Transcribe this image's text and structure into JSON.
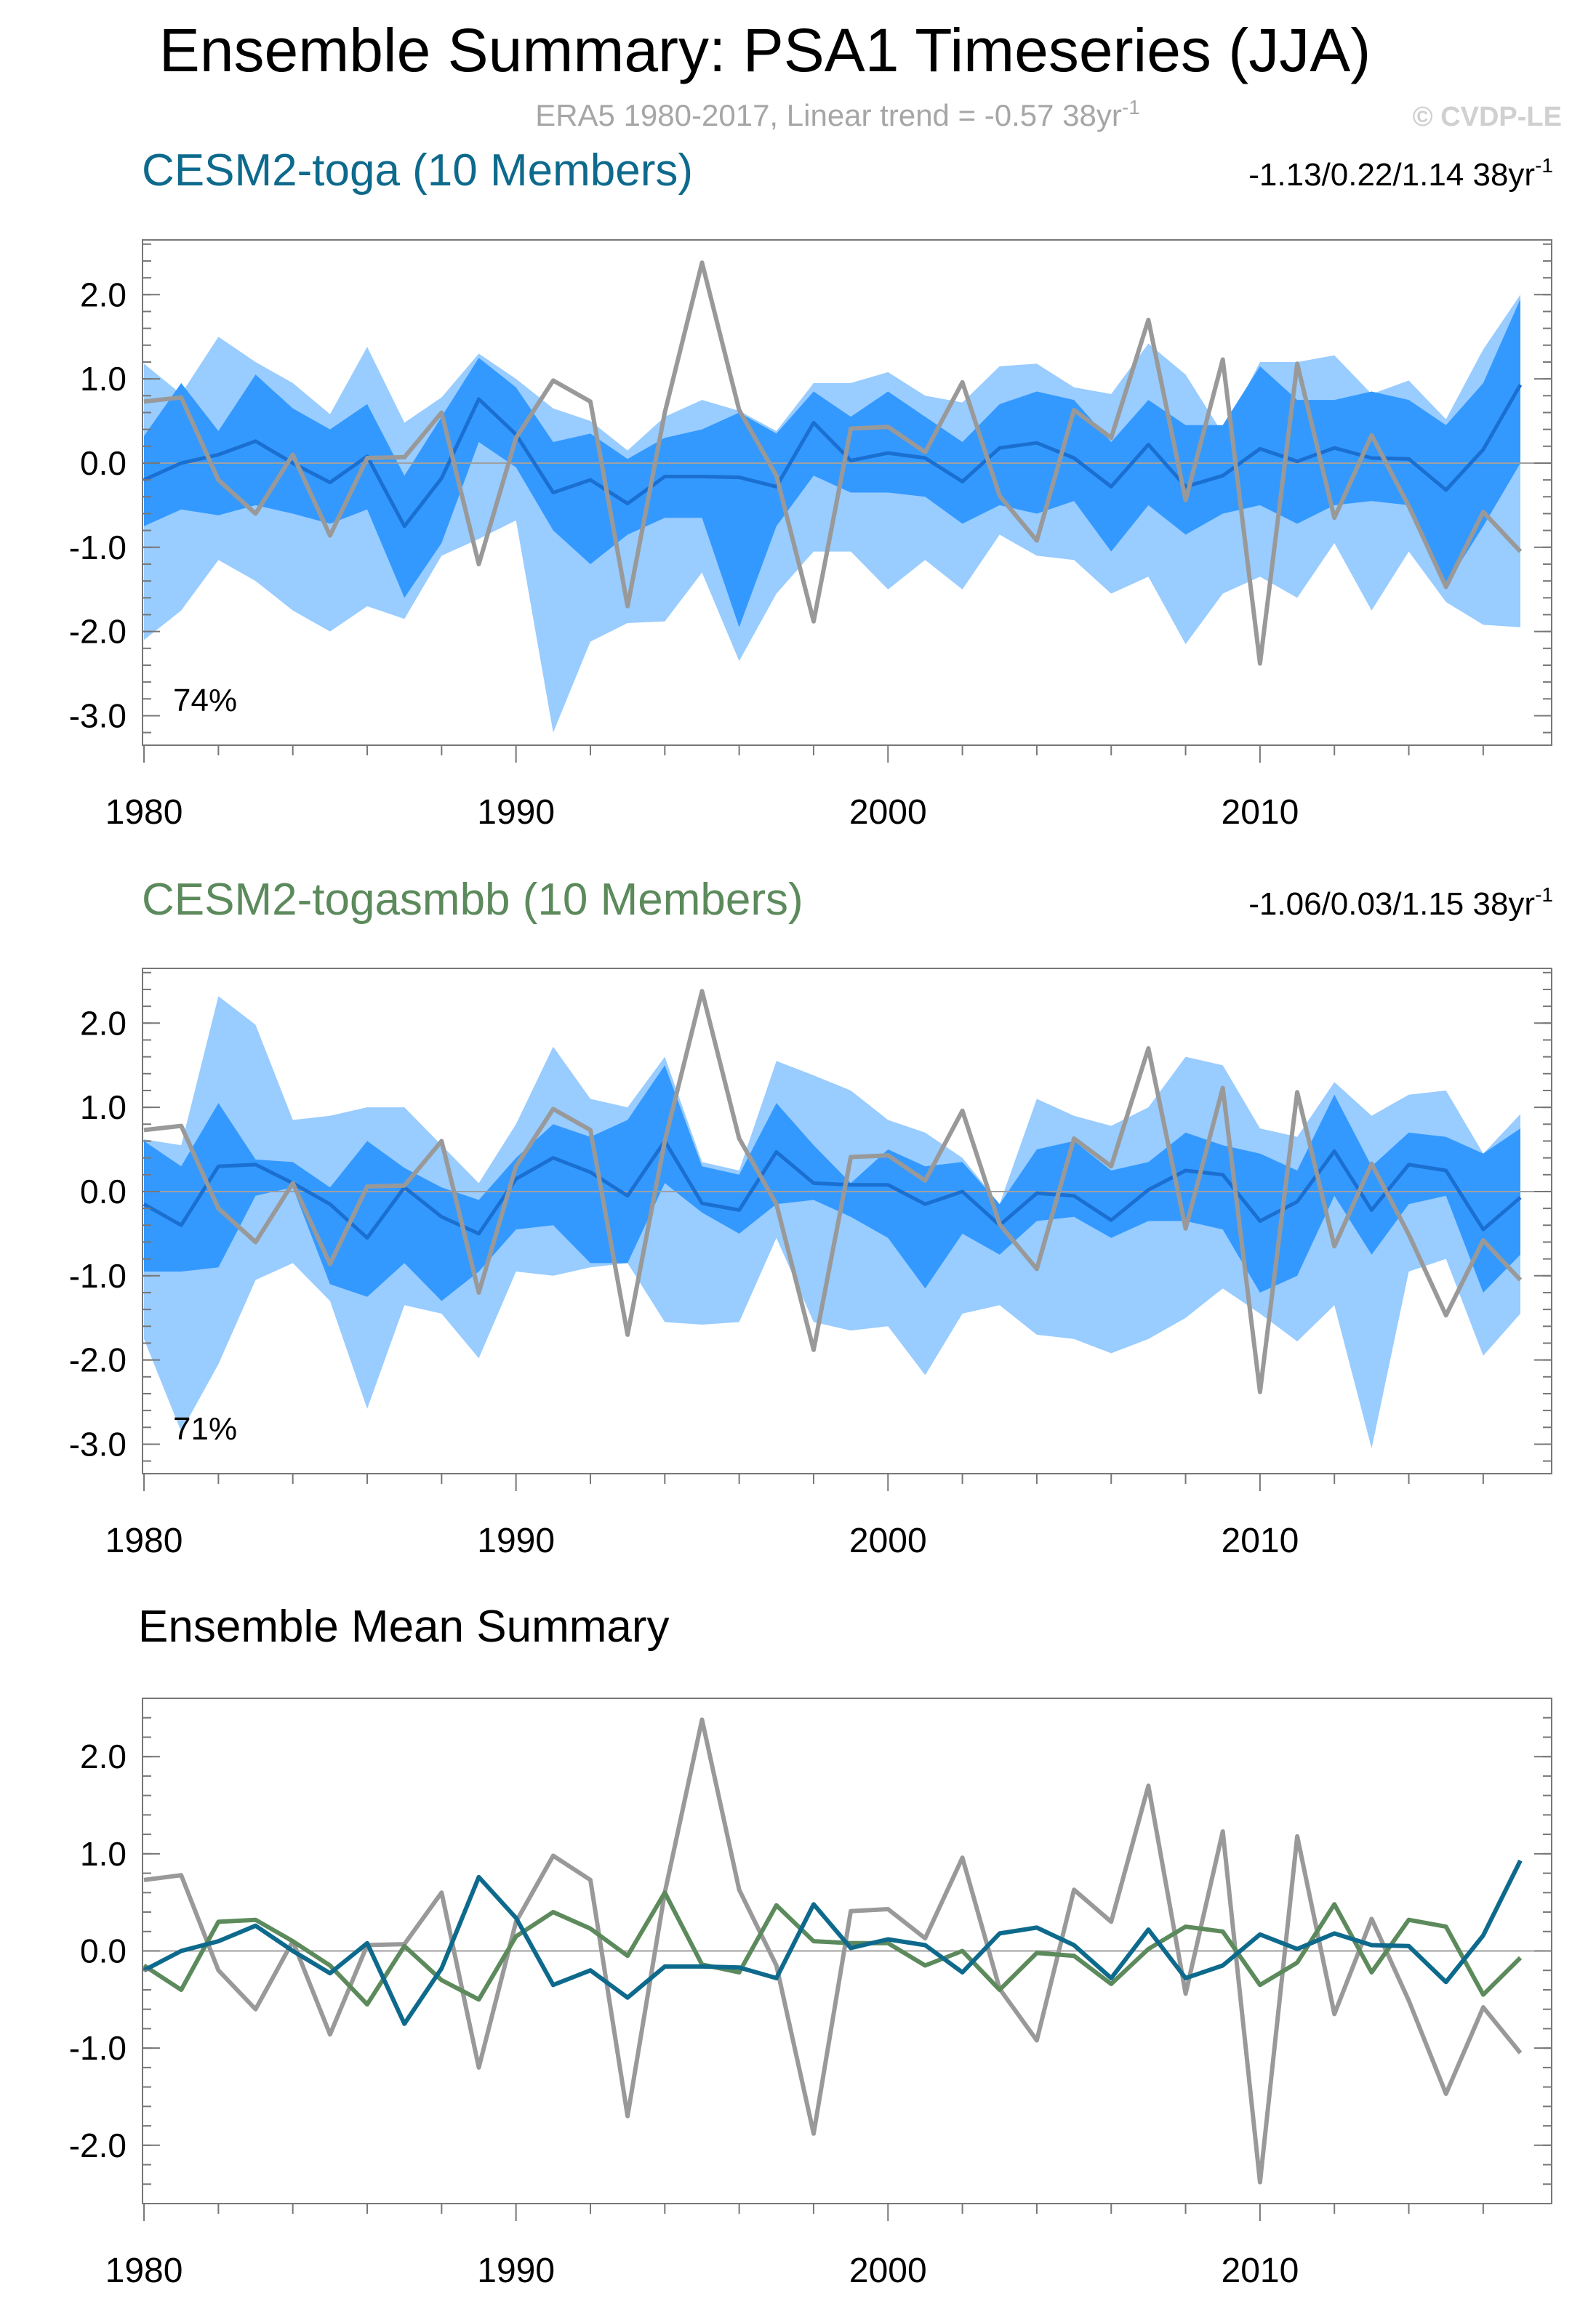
{
  "header": {
    "title": "Ensemble Summary: PSA1 Timeseries (JJA)",
    "subtitle_prefix": "ERA5 1980-2017, Linear trend = -0.57 38yr",
    "subtitle_sup": "-1",
    "watermark": "© CVDP-LE"
  },
  "colors": {
    "model1": "#0e6a8c",
    "model2": "#5c8a5c",
    "obs": "#999999",
    "band_outer": "#99ccff",
    "band_inner": "#3399ff",
    "member_mean": "#1a6fd1",
    "subtitle": "#a6a6a6",
    "watermark": "#d0d0d0",
    "zero_line": "#a0a0a0"
  },
  "chart_data": [
    {
      "type": "area",
      "title": "CESM2-toga (10 Members)",
      "trend_prefix": "-1.13/0.22/1.14 38yr",
      "trend_sup": "-1",
      "percent_label": "74%",
      "x": [
        1980,
        1981,
        1982,
        1983,
        1984,
        1985,
        1986,
        1987,
        1988,
        1989,
        1990,
        1991,
        1992,
        1993,
        1994,
        1995,
        1996,
        1997,
        1998,
        1999,
        2000,
        2001,
        2002,
        2003,
        2004,
        2005,
        2006,
        2007,
        2008,
        2009,
        2010,
        2011,
        2012,
        2013,
        2014,
        2015,
        2016,
        2017
      ],
      "xlim": [
        1979.96,
        2017.84
      ],
      "ylim": [
        -3.35,
        2.65
      ],
      "xticks": [
        1980,
        1990,
        2000,
        2010
      ],
      "xtick_labels": [
        "1980",
        "1990",
        "2000",
        "2010"
      ],
      "yticks": [
        2.0,
        1.0,
        0.0,
        -1.0,
        -2.0,
        -3.0
      ],
      "ytick_labels": [
        "2.0",
        "1.0",
        "0.0",
        "-1.0",
        "-2.0",
        "-3.0"
      ],
      "outer_band": {
        "upper": [
          1.18,
          0.82,
          1.5,
          1.2,
          0.95,
          0.58,
          1.38,
          0.48,
          0.78,
          1.3,
          1.0,
          0.65,
          0.5,
          0.15,
          0.55,
          0.75,
          0.62,
          0.38,
          0.95,
          0.95,
          1.08,
          0.8,
          0.72,
          1.15,
          1.18,
          0.9,
          0.82,
          1.42,
          1.05,
          0.35,
          1.2,
          1.2,
          1.28,
          0.82,
          0.98,
          0.52,
          1.35,
          2.0
        ],
        "lower": [
          -2.1,
          -1.75,
          -1.15,
          -1.4,
          -1.75,
          -2.0,
          -1.7,
          -1.85,
          -1.1,
          -0.9,
          -0.68,
          -3.2,
          -2.12,
          -1.9,
          -1.88,
          -1.3,
          -2.35,
          -1.55,
          -1.05,
          -1.05,
          -1.5,
          -1.15,
          -1.5,
          -0.85,
          -1.1,
          -1.15,
          -1.55,
          -1.35,
          -2.15,
          -1.55,
          -1.35,
          -1.6,
          -0.95,
          -1.75,
          -1.05,
          -1.65,
          -1.92,
          -1.95
        ]
      },
      "inner_band": {
        "upper": [
          0.32,
          0.95,
          0.38,
          1.05,
          0.65,
          0.4,
          0.7,
          -0.15,
          0.55,
          1.25,
          0.9,
          0.25,
          0.35,
          0.05,
          0.3,
          0.4,
          0.6,
          0.35,
          0.85,
          0.55,
          0.85,
          0.55,
          0.25,
          0.7,
          0.85,
          0.75,
          0.25,
          0.75,
          0.45,
          0.45,
          1.15,
          0.75,
          0.75,
          0.85,
          0.75,
          0.45,
          0.95,
          1.95
        ],
        "lower": [
          -0.75,
          -0.55,
          -0.62,
          -0.5,
          -0.6,
          -0.72,
          -0.55,
          -1.6,
          -0.95,
          0.25,
          -0.05,
          -0.8,
          -1.2,
          -0.85,
          -0.65,
          -0.65,
          -1.95,
          -0.75,
          -0.15,
          -0.35,
          -0.35,
          -0.4,
          -0.72,
          -0.5,
          -0.6,
          -0.45,
          -1.05,
          -0.5,
          -0.85,
          -0.6,
          -0.5,
          -0.72,
          -0.5,
          -0.45,
          -0.5,
          -1.45,
          -0.75,
          0.0
        ]
      },
      "mean": [
        -0.2,
        0.0,
        0.1,
        0.26,
        0.0,
        -0.23,
        0.08,
        -0.75,
        -0.18,
        0.76,
        0.34,
        -0.35,
        -0.2,
        -0.48,
        -0.16,
        -0.16,
        -0.17,
        -0.28,
        0.48,
        0.03,
        0.12,
        0.06,
        -0.22,
        0.18,
        0.24,
        0.06,
        -0.28,
        0.22,
        -0.28,
        -0.15,
        0.17,
        0.02,
        0.18,
        0.06,
        0.05,
        -0.32,
        0.16,
        0.93
      ],
      "obs": [
        0.73,
        0.78,
        -0.2,
        -0.6,
        0.1,
        -0.86,
        0.06,
        0.07,
        0.6,
        -1.2,
        0.3,
        0.98,
        0.73,
        -1.7,
        0.6,
        2.38,
        0.63,
        -0.15,
        -1.88,
        0.41,
        0.43,
        0.13,
        0.96,
        -0.39,
        -0.92,
        0.63,
        0.3,
        1.7,
        -0.44,
        1.23,
        -2.38,
        1.18,
        -0.65,
        0.33,
        -0.51,
        -1.47,
        -0.58,
        -1.05
      ],
      "series_color": "#1a6fd1"
    },
    {
      "type": "area",
      "title": "CESM2-togasmbb (10 Members)",
      "trend_prefix": "-1.06/0.03/1.15 38yr",
      "trend_sup": "-1",
      "percent_label": "71%",
      "x": [
        1980,
        1981,
        1982,
        1983,
        1984,
        1985,
        1986,
        1987,
        1988,
        1989,
        1990,
        1991,
        1992,
        1993,
        1994,
        1995,
        1996,
        1997,
        1998,
        1999,
        2000,
        2001,
        2002,
        2003,
        2004,
        2005,
        2006,
        2007,
        2008,
        2009,
        2010,
        2011,
        2012,
        2013,
        2014,
        2015,
        2016,
        2017
      ],
      "xlim": [
        1979.96,
        2017.84
      ],
      "ylim": [
        -3.35,
        2.65
      ],
      "xticks": [
        1980,
        1990,
        2000,
        2010
      ],
      "xtick_labels": [
        "1980",
        "1990",
        "2000",
        "2010"
      ],
      "yticks": [
        2.0,
        1.0,
        0.0,
        -1.0,
        -2.0,
        -3.0
      ],
      "ytick_labels": [
        "2.0",
        "1.0",
        "0.0",
        "-1.0",
        "-2.0",
        "-3.0"
      ],
      "outer_band": {
        "upper": [
          0.62,
          0.55,
          2.32,
          1.98,
          0.85,
          0.9,
          1.0,
          1.0,
          0.55,
          0.1,
          0.8,
          1.72,
          1.1,
          1.0,
          1.6,
          0.35,
          0.25,
          1.55,
          1.38,
          1.2,
          0.85,
          0.7,
          0.4,
          -0.15,
          1.1,
          0.9,
          0.78,
          1.0,
          1.6,
          1.5,
          0.75,
          0.65,
          1.3,
          0.9,
          1.15,
          1.2,
          0.45,
          0.92
        ],
        "lower": [
          -1.75,
          -2.85,
          -2.05,
          -1.05,
          -0.85,
          -1.3,
          -2.58,
          -1.35,
          -1.45,
          -1.98,
          -0.95,
          -1.0,
          -0.9,
          -0.85,
          -1.55,
          -1.58,
          -1.55,
          -0.55,
          -1.55,
          -1.65,
          -1.6,
          -2.18,
          -1.45,
          -1.35,
          -1.7,
          -1.75,
          -1.92,
          -1.75,
          -1.5,
          -1.15,
          -1.45,
          -1.78,
          -1.35,
          -3.05,
          -0.95,
          -0.8,
          -1.95,
          -1.45
        ]
      },
      "inner_band": {
        "upper": [
          0.6,
          0.3,
          1.05,
          0.38,
          0.35,
          0.05,
          0.6,
          0.28,
          0.05,
          -0.1,
          0.4,
          0.8,
          0.65,
          0.85,
          1.5,
          0.3,
          0.2,
          1.05,
          0.55,
          0.1,
          0.5,
          0.3,
          0.35,
          -0.15,
          0.5,
          0.6,
          0.25,
          0.35,
          0.7,
          0.55,
          0.45,
          0.25,
          1.15,
          0.3,
          0.7,
          0.65,
          0.45,
          0.75
        ],
        "lower": [
          -0.95,
          -0.95,
          -0.9,
          -0.05,
          0.05,
          -1.1,
          -1.25,
          -0.85,
          -1.3,
          -0.95,
          -0.45,
          -0.4,
          -0.85,
          -0.85,
          0.1,
          -0.25,
          -0.5,
          -0.15,
          -0.1,
          -0.3,
          -0.55,
          -1.15,
          -0.5,
          -0.75,
          -0.35,
          -0.3,
          -0.55,
          -0.35,
          -0.35,
          -0.45,
          -1.2,
          -1.0,
          -0.05,
          -0.75,
          -0.15,
          -0.05,
          -1.2,
          -0.75
        ]
      },
      "mean": [
        -0.15,
        -0.4,
        0.3,
        0.32,
        0.1,
        -0.15,
        -0.55,
        0.05,
        -0.3,
        -0.5,
        0.15,
        0.4,
        0.23,
        -0.05,
        0.6,
        -0.14,
        -0.22,
        0.47,
        0.1,
        0.08,
        0.08,
        -0.15,
        0.0,
        -0.4,
        -0.02,
        -0.05,
        -0.34,
        0.02,
        0.25,
        0.2,
        -0.35,
        -0.12,
        0.48,
        -0.22,
        0.32,
        0.25,
        -0.45,
        -0.07
      ],
      "obs": [
        0.73,
        0.78,
        -0.2,
        -0.6,
        0.1,
        -0.86,
        0.06,
        0.07,
        0.6,
        -1.2,
        0.3,
        0.98,
        0.73,
        -1.7,
        0.6,
        2.38,
        0.63,
        -0.15,
        -1.88,
        0.41,
        0.43,
        0.13,
        0.96,
        -0.39,
        -0.92,
        0.63,
        0.3,
        1.7,
        -0.44,
        1.23,
        -2.38,
        1.18,
        -0.65,
        0.33,
        -0.51,
        -1.47,
        -0.58,
        -1.05
      ],
      "series_color": "#1a6fd1"
    },
    {
      "type": "line",
      "title": "Ensemble Mean Summary",
      "x": [
        1980,
        1981,
        1982,
        1983,
        1984,
        1985,
        1986,
        1987,
        1988,
        1989,
        1990,
        1991,
        1992,
        1993,
        1994,
        1995,
        1996,
        1997,
        1998,
        1999,
        2000,
        2001,
        2002,
        2003,
        2004,
        2005,
        2006,
        2007,
        2008,
        2009,
        2010,
        2011,
        2012,
        2013,
        2014,
        2015,
        2016,
        2017
      ],
      "xlim": [
        1979.96,
        2017.84
      ],
      "ylim": [
        -2.6,
        2.6
      ],
      "xticks": [
        1980,
        1990,
        2000,
        2010
      ],
      "xtick_labels": [
        "1980",
        "1990",
        "2000",
        "2010"
      ],
      "yticks": [
        2.0,
        1.0,
        0.0,
        -1.0,
        -2.0
      ],
      "ytick_labels": [
        "2.0",
        "1.0",
        "0.0",
        "-1.0",
        "-2.0"
      ],
      "series": [
        {
          "name": "ERA5",
          "color": "#999999",
          "values": [
            0.73,
            0.78,
            -0.2,
            -0.6,
            0.1,
            -0.86,
            0.06,
            0.07,
            0.6,
            -1.2,
            0.3,
            0.98,
            0.73,
            -1.7,
            0.6,
            2.38,
            0.63,
            -0.15,
            -1.88,
            0.41,
            0.43,
            0.13,
            0.96,
            -0.39,
            -0.92,
            0.63,
            0.3,
            1.7,
            -0.44,
            1.23,
            -2.38,
            1.18,
            -0.65,
            0.33,
            -0.51,
            -1.47,
            -0.58,
            -1.05
          ]
        },
        {
          "name": "CESM2-togasmbb",
          "color": "#5c8a5c",
          "values": [
            -0.15,
            -0.4,
            0.3,
            0.32,
            0.1,
            -0.15,
            -0.55,
            0.05,
            -0.3,
            -0.5,
            0.15,
            0.4,
            0.23,
            -0.05,
            0.6,
            -0.14,
            -0.22,
            0.47,
            0.1,
            0.08,
            0.08,
            -0.15,
            0.0,
            -0.4,
            -0.02,
            -0.05,
            -0.34,
            0.02,
            0.25,
            0.2,
            -0.35,
            -0.12,
            0.48,
            -0.22,
            0.32,
            0.25,
            -0.45,
            -0.07
          ]
        },
        {
          "name": "CESM2-toga",
          "color": "#0e6a8c",
          "values": [
            -0.2,
            0.0,
            0.1,
            0.26,
            0.0,
            -0.23,
            0.08,
            -0.75,
            -0.18,
            0.76,
            0.34,
            -0.35,
            -0.2,
            -0.48,
            -0.16,
            -0.16,
            -0.17,
            -0.28,
            0.48,
            0.03,
            0.12,
            0.06,
            -0.22,
            0.18,
            0.24,
            0.06,
            -0.28,
            0.22,
            -0.28,
            -0.15,
            0.17,
            0.02,
            0.18,
            0.06,
            0.05,
            -0.32,
            0.16,
            0.93
          ]
        }
      ]
    }
  ]
}
